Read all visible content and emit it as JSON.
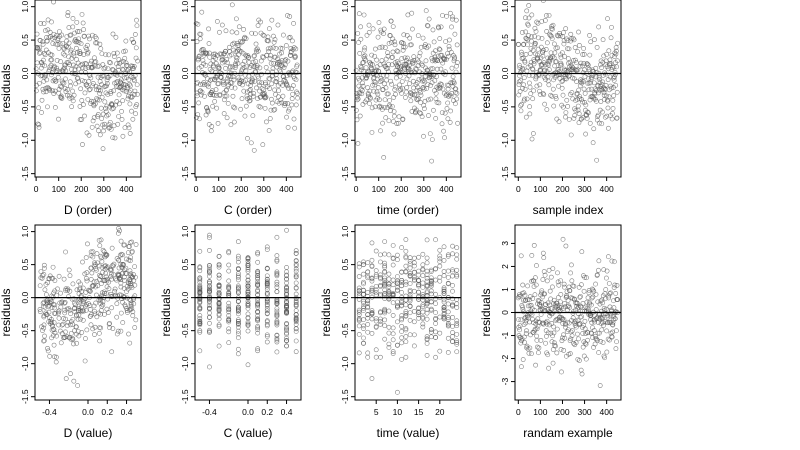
{
  "chart_data": [
    {
      "type": "scatter",
      "xlabel": "D (order)",
      "ylabel": "residuals",
      "xlim": [
        -5,
        465
      ],
      "ylim": [
        -1.55,
        1.1
      ],
      "xticks": [
        0,
        100,
        200,
        300,
        400
      ],
      "yticks": [
        -1.5,
        -1.0,
        -0.5,
        0.0,
        0.5,
        1.0
      ],
      "ytick_labels": [
        "-1.5",
        "-1.0",
        "-0.5",
        "0.0",
        "0.5",
        "1.0"
      ],
      "grid": false,
      "reference_line": 0,
      "sample": {
        "seed": 101,
        "n": 450,
        "x_kind": "index",
        "x_range": [
          0,
          450
        ],
        "y_sd": 0.38,
        "trend": "order"
      }
    },
    {
      "type": "scatter",
      "xlabel": "C (order)",
      "ylabel": "residuals",
      "xlim": [
        -5,
        465
      ],
      "ylim": [
        -1.55,
        1.1
      ],
      "xticks": [
        0,
        100,
        200,
        300,
        400
      ],
      "yticks": [
        -1.5,
        -1.0,
        -0.5,
        0.0,
        0.5,
        1.0
      ],
      "ytick_labels": [
        "-1.5",
        "-1.0",
        "-0.5",
        "0.0",
        "0.5",
        "1.0"
      ],
      "grid": false,
      "reference_line": 0,
      "sample": {
        "seed": 202,
        "n": 450,
        "x_kind": "index",
        "x_range": [
          0,
          450
        ],
        "y_sd": 0.38,
        "trend": "none"
      }
    },
    {
      "type": "scatter",
      "xlabel": "time (order)",
      "ylabel": "residuals",
      "xlim": [
        -5,
        465
      ],
      "ylim": [
        -1.55,
        1.1
      ],
      "xticks": [
        0,
        100,
        200,
        300,
        400
      ],
      "yticks": [
        -1.5,
        -1.0,
        -0.5,
        0.0,
        0.5,
        1.0
      ],
      "ytick_labels": [
        "-1.5",
        "-1.0",
        "-0.5",
        "0.0",
        "0.5",
        "1.0"
      ],
      "grid": false,
      "reference_line": 0,
      "sample": {
        "seed": 303,
        "n": 450,
        "x_kind": "index",
        "x_range": [
          0,
          450
        ],
        "y_sd": 0.38,
        "trend": "none"
      }
    },
    {
      "type": "scatter",
      "xlabel": "sample index",
      "ylabel": "residuals",
      "xlim": [
        -15,
        465
      ],
      "ylim": [
        -1.55,
        1.1
      ],
      "xticks": [
        0,
        100,
        200,
        300,
        400
      ],
      "yticks": [
        -1.5,
        -1.0,
        -0.5,
        0.0,
        0.5,
        1.0
      ],
      "ytick_labels": [
        "-1.5",
        "-1.0",
        "-0.5",
        "0.0",
        "0.5",
        "1.0"
      ],
      "grid": false,
      "reference_line": 0,
      "sample": {
        "seed": 404,
        "n": 450,
        "x_kind": "index",
        "x_range": [
          0,
          450
        ],
        "y_sd": 0.38,
        "trend": "order"
      }
    },
    {
      "type": "scatter",
      "xlabel": "D (value)",
      "ylabel": "residuals",
      "xlim": [
        -0.55,
        0.55
      ],
      "ylim": [
        -1.55,
        1.1
      ],
      "xticks": [
        -0.4,
        0.0,
        0.2,
        0.4
      ],
      "xtick_labels": [
        "-0.4",
        "0.0",
        "0.2",
        "0.4"
      ],
      "yticks": [
        -1.5,
        -1.0,
        -0.5,
        0.0,
        0.5,
        1.0
      ],
      "ytick_labels": [
        "-1.5",
        "-1.0",
        "-0.5",
        "0.0",
        "0.5",
        "1.0"
      ],
      "grid": false,
      "reference_line": 0,
      "sample": {
        "seed": 505,
        "n": 450,
        "x_kind": "uniform",
        "x_range": [
          -0.5,
          0.5
        ],
        "y_sd": 0.38,
        "trend": "value"
      }
    },
    {
      "type": "scatter",
      "xlabel": "C (value)",
      "ylabel": "residuals",
      "xlim": [
        -0.55,
        0.55
      ],
      "ylim": [
        -1.55,
        1.1
      ],
      "xticks": [
        -0.4,
        0.0,
        0.2,
        0.4
      ],
      "xtick_labels": [
        "-0.4",
        "0.0",
        "0.2",
        "0.4"
      ],
      "yticks": [
        -1.5,
        -1.0,
        -0.5,
        0.0,
        0.5,
        1.0
      ],
      "ytick_labels": [
        "-1.5",
        "-1.0",
        "-0.5",
        "0.0",
        "0.5",
        "1.0"
      ],
      "grid": false,
      "reference_line": 0,
      "sample": {
        "seed": 606,
        "n": 450,
        "x_kind": "discrete",
        "x_values": [
          -0.5,
          -0.4,
          -0.3,
          -0.2,
          -0.1,
          0.0,
          0.1,
          0.2,
          0.3,
          0.4,
          0.5
        ],
        "y_sd": 0.38,
        "trend": "none"
      }
    },
    {
      "type": "scatter",
      "xlabel": "time (value)",
      "ylabel": "residuals",
      "xlim": [
        0,
        25
      ],
      "ylim": [
        -1.55,
        1.1
      ],
      "xticks": [
        5,
        10,
        15,
        20
      ],
      "yticks": [
        -1.5,
        -1.0,
        -0.5,
        0.0,
        0.5,
        1.0
      ],
      "ytick_labels": [
        "-1.5",
        "-1.0",
        "-0.5",
        "0.0",
        "0.5",
        "1.0"
      ],
      "grid": false,
      "reference_line": 0,
      "sample": {
        "seed": 707,
        "n": 450,
        "x_kind": "integer",
        "x_range": [
          1,
          24
        ],
        "y_sd": 0.38,
        "trend": "none"
      }
    },
    {
      "type": "scatter",
      "xlabel": "randam example",
      "ylabel": "residuals",
      "xlim": [
        -15,
        465
      ],
      "ylim": [
        -3.8,
        3.8
      ],
      "xticks": [
        0,
        100,
        200,
        300,
        400
      ],
      "yticks": [
        -3,
        -2,
        -1,
        0,
        1,
        2,
        3
      ],
      "ytick_labels": [
        "-3",
        "-2",
        "-1",
        "0",
        "1",
        "2",
        "3"
      ],
      "grid": false,
      "reference_line": 0,
      "sample": {
        "seed": 808,
        "n": 450,
        "x_kind": "index",
        "x_range": [
          0,
          450
        ],
        "y_sd": 1.0,
        "trend": "none"
      }
    }
  ]
}
